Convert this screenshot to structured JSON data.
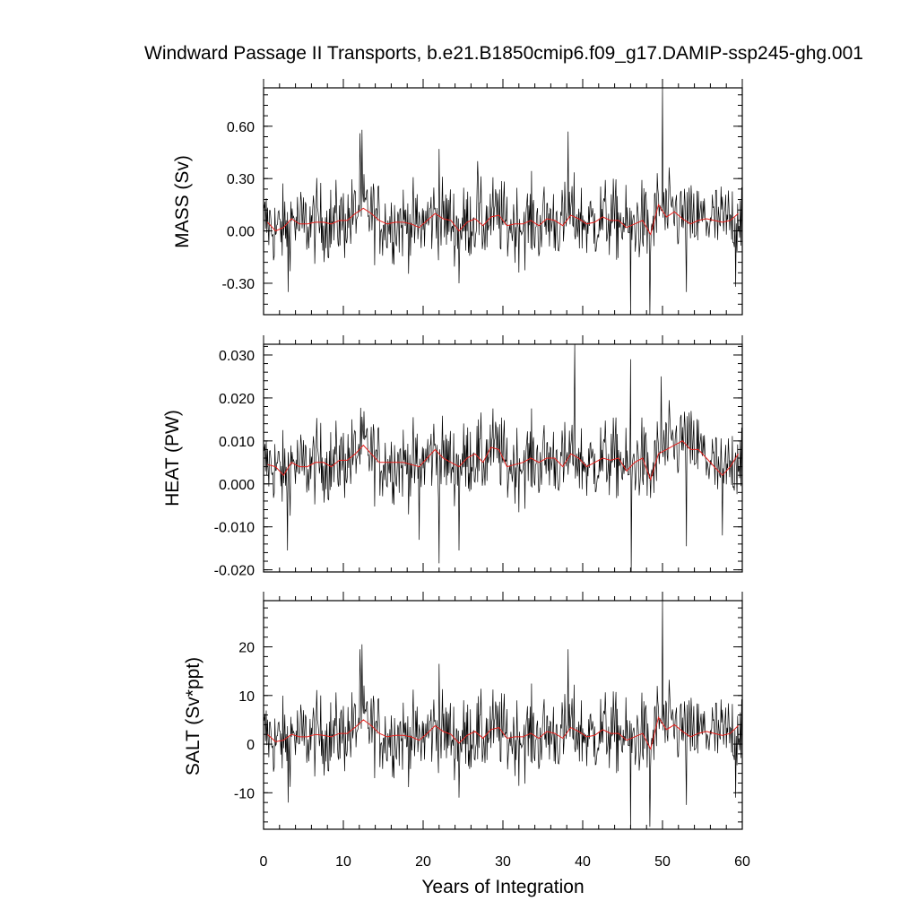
{
  "chart_data": {
    "title": "Windward Passage II Transports, b.e21.B1850cmip6.f09_g17.DAMIP-ssp245-ghg.001",
    "xlabel": "Years of Integration",
    "xlim": [
      0,
      60
    ],
    "xticks": [
      0,
      10,
      20,
      30,
      40,
      50,
      60
    ],
    "xtick_labels": [
      "0",
      "10",
      "20",
      "30",
      "40",
      "50",
      "60"
    ],
    "colors": {
      "raw": "#000000",
      "smooth": "#e8211d"
    },
    "panels": [
      {
        "type": "line",
        "name": "mass",
        "ylabel": "MASS (Sv)",
        "ylim": [
          -0.48,
          0.82
        ],
        "yticks": [
          -0.3,
          0.0,
          0.3,
          0.6
        ],
        "ytick_labels": [
          "-0.30",
          "0.00",
          "0.30",
          "0.60"
        ],
        "minor_step": 0.06,
        "spikes": [
          [
            12.1,
            0.56
          ],
          [
            12.3,
            0.58
          ],
          [
            22.0,
            0.47
          ],
          [
            26.8,
            0.4
          ],
          [
            38.2,
            0.57
          ],
          [
            50.0,
            0.82
          ],
          [
            24.5,
            -0.3
          ],
          [
            46.0,
            -0.48
          ],
          [
            48.4,
            -0.48
          ],
          [
            53.0,
            -0.35
          ],
          [
            3.1,
            -0.35
          ],
          [
            59.2,
            -0.32
          ]
        ],
        "smooth": [
          [
            0.5,
            0.05
          ],
          [
            1.5,
            0.0
          ],
          [
            2.5,
            0.02
          ],
          [
            3.5,
            0.07
          ],
          [
            4.5,
            0.04
          ],
          [
            5.5,
            0.04
          ],
          [
            6.5,
            0.05
          ],
          [
            7.5,
            0.05
          ],
          [
            8.5,
            0.04
          ],
          [
            9.5,
            0.06
          ],
          [
            10.5,
            0.06
          ],
          [
            11.5,
            0.1
          ],
          [
            12.5,
            0.13
          ],
          [
            13.5,
            0.1
          ],
          [
            14.5,
            0.06
          ],
          [
            15.5,
            0.04
          ],
          [
            16.5,
            0.05
          ],
          [
            17.5,
            0.05
          ],
          [
            18.5,
            0.04
          ],
          [
            19.5,
            0.02
          ],
          [
            20.5,
            0.06
          ],
          [
            21.5,
            0.1
          ],
          [
            22.5,
            0.07
          ],
          [
            23.5,
            0.06
          ],
          [
            24.5,
            0.0
          ],
          [
            25.5,
            0.05
          ],
          [
            26.5,
            0.07
          ],
          [
            27.5,
            0.03
          ],
          [
            28.5,
            0.08
          ],
          [
            29.5,
            0.09
          ],
          [
            30.5,
            0.03
          ],
          [
            31.5,
            0.04
          ],
          [
            32.5,
            0.04
          ],
          [
            33.5,
            0.06
          ],
          [
            34.5,
            0.03
          ],
          [
            35.5,
            0.07
          ],
          [
            36.5,
            0.06
          ],
          [
            37.5,
            0.03
          ],
          [
            38.5,
            0.09
          ],
          [
            39.5,
            0.07
          ],
          [
            40.5,
            0.04
          ],
          [
            41.5,
            0.05
          ],
          [
            42.5,
            0.08
          ],
          [
            43.5,
            0.06
          ],
          [
            44.5,
            0.06
          ],
          [
            45.5,
            0.02
          ],
          [
            46.5,
            0.04
          ],
          [
            47.5,
            0.06
          ],
          [
            48.5,
            -0.02
          ],
          [
            49.5,
            0.15
          ],
          [
            50.5,
            0.08
          ],
          [
            51.5,
            0.11
          ],
          [
            52.5,
            0.07
          ],
          [
            53.5,
            0.04
          ],
          [
            54.5,
            0.06
          ],
          [
            55.5,
            0.07
          ],
          [
            56.5,
            0.06
          ],
          [
            57.5,
            0.05
          ],
          [
            58.5,
            0.06
          ],
          [
            59.5,
            0.1
          ]
        ]
      },
      {
        "type": "line",
        "name": "heat",
        "ylabel": "HEAT (PW)",
        "ylim": [
          -0.0205,
          0.0325
        ],
        "yticks": [
          -0.02,
          -0.01,
          0.0,
          0.01,
          0.02,
          0.03
        ],
        "ytick_labels": [
          "-0.020",
          "-0.010",
          "0.000",
          "0.010",
          "0.020",
          "0.030"
        ],
        "minor_step": 0.002,
        "spikes": [
          [
            39.0,
            0.0325
          ],
          [
            46.0,
            0.029
          ],
          [
            49.8,
            0.025
          ],
          [
            3.0,
            -0.0155
          ],
          [
            22.0,
            -0.0185
          ],
          [
            24.5,
            -0.0155
          ],
          [
            46.1,
            -0.0205
          ],
          [
            53.0,
            -0.0145
          ],
          [
            19.5,
            -0.013
          ],
          [
            57.5,
            -0.012
          ]
        ],
        "smooth": [
          [
            0.5,
            0.0045
          ],
          [
            1.5,
            0.004
          ],
          [
            2.5,
            0.002
          ],
          [
            3.5,
            0.005
          ],
          [
            4.5,
            0.004
          ],
          [
            5.5,
            0.004
          ],
          [
            6.5,
            0.005
          ],
          [
            7.5,
            0.005
          ],
          [
            8.5,
            0.004
          ],
          [
            9.5,
            0.0055
          ],
          [
            10.5,
            0.0055
          ],
          [
            11.5,
            0.007
          ],
          [
            12.5,
            0.009
          ],
          [
            13.5,
            0.007
          ],
          [
            14.5,
            0.005
          ],
          [
            15.5,
            0.005
          ],
          [
            16.5,
            0.005
          ],
          [
            17.5,
            0.005
          ],
          [
            18.5,
            0.0045
          ],
          [
            19.5,
            0.004
          ],
          [
            20.5,
            0.006
          ],
          [
            21.5,
            0.008
          ],
          [
            22.5,
            0.006
          ],
          [
            23.5,
            0.005
          ],
          [
            24.5,
            0.004
          ],
          [
            25.5,
            0.006
          ],
          [
            26.5,
            0.007
          ],
          [
            27.5,
            0.005
          ],
          [
            28.5,
            0.0085
          ],
          [
            29.5,
            0.008
          ],
          [
            30.5,
            0.004
          ],
          [
            31.5,
            0.0045
          ],
          [
            32.5,
            0.005
          ],
          [
            33.5,
            0.006
          ],
          [
            34.5,
            0.005
          ],
          [
            35.5,
            0.006
          ],
          [
            36.5,
            0.006
          ],
          [
            37.5,
            0.004
          ],
          [
            38.5,
            0.007
          ],
          [
            39.5,
            0.006
          ],
          [
            40.5,
            0.004
          ],
          [
            41.5,
            0.005
          ],
          [
            42.5,
            0.006
          ],
          [
            43.5,
            0.0055
          ],
          [
            44.5,
            0.006
          ],
          [
            45.5,
            0.003
          ],
          [
            46.5,
            0.005
          ],
          [
            47.5,
            0.006
          ],
          [
            48.5,
            0.001
          ],
          [
            49.5,
            0.007
          ],
          [
            50.5,
            0.008
          ],
          [
            51.5,
            0.009
          ],
          [
            52.5,
            0.01
          ],
          [
            53.5,
            0.008
          ],
          [
            54.5,
            0.008
          ],
          [
            55.5,
            0.006
          ],
          [
            56.5,
            0.004
          ],
          [
            57.5,
            0.002
          ],
          [
            58.5,
            0.004
          ],
          [
            59.5,
            0.007
          ]
        ]
      },
      {
        "type": "line",
        "name": "salt",
        "ylabel": "SALT (Sv*ppt)",
        "ylim": [
          -17.5,
          29.5
        ],
        "yticks": [
          -10,
          0,
          10,
          20
        ],
        "ytick_labels": [
          "-10",
          "0",
          "10",
          "20"
        ],
        "minor_step": 2,
        "spikes": [
          [
            12.1,
            19.5
          ],
          [
            12.3,
            20.5
          ],
          [
            22.0,
            16.5
          ],
          [
            38.2,
            19.5
          ],
          [
            50.0,
            29.5
          ],
          [
            3.1,
            -12.0
          ],
          [
            24.5,
            -11.0
          ],
          [
            46.0,
            -17.5
          ],
          [
            48.4,
            -17.0
          ],
          [
            53.0,
            -12.5
          ],
          [
            59.2,
            -11.0
          ]
        ],
        "smooth": [
          [
            0.5,
            2.0
          ],
          [
            1.5,
            0.5
          ],
          [
            2.5,
            0.8
          ],
          [
            3.5,
            2.0
          ],
          [
            4.5,
            1.5
          ],
          [
            5.5,
            1.5
          ],
          [
            6.5,
            2.0
          ],
          [
            7.5,
            1.8
          ],
          [
            8.5,
            1.5
          ],
          [
            9.5,
            2.2
          ],
          [
            10.5,
            2.2
          ],
          [
            11.5,
            3.5
          ],
          [
            12.5,
            5.0
          ],
          [
            13.5,
            3.8
          ],
          [
            14.5,
            2.2
          ],
          [
            15.5,
            1.5
          ],
          [
            16.5,
            1.8
          ],
          [
            17.5,
            1.8
          ],
          [
            18.5,
            1.5
          ],
          [
            19.5,
            0.8
          ],
          [
            20.5,
            2.2
          ],
          [
            21.5,
            3.8
          ],
          [
            22.5,
            2.6
          ],
          [
            23.5,
            2.0
          ],
          [
            24.5,
            0.2
          ],
          [
            25.5,
            1.8
          ],
          [
            26.5,
            2.6
          ],
          [
            27.5,
            1.2
          ],
          [
            28.5,
            3.0
          ],
          [
            29.5,
            3.4
          ],
          [
            30.5,
            1.2
          ],
          [
            31.5,
            1.5
          ],
          [
            32.5,
            1.5
          ],
          [
            33.5,
            2.2
          ],
          [
            34.5,
            1.2
          ],
          [
            35.5,
            2.6
          ],
          [
            36.5,
            2.2
          ],
          [
            37.5,
            1.2
          ],
          [
            38.5,
            3.4
          ],
          [
            39.5,
            2.6
          ],
          [
            40.5,
            1.5
          ],
          [
            41.5,
            1.8
          ],
          [
            42.5,
            3.0
          ],
          [
            43.5,
            2.2
          ],
          [
            44.5,
            2.2
          ],
          [
            45.5,
            0.8
          ],
          [
            46.5,
            1.5
          ],
          [
            47.5,
            2.2
          ],
          [
            48.5,
            -1.0
          ],
          [
            49.5,
            5.5
          ],
          [
            50.5,
            3.0
          ],
          [
            51.5,
            4.0
          ],
          [
            52.5,
            2.6
          ],
          [
            53.5,
            1.5
          ],
          [
            54.5,
            2.2
          ],
          [
            55.5,
            2.6
          ],
          [
            56.5,
            2.2
          ],
          [
            57.5,
            1.8
          ],
          [
            58.5,
            2.2
          ],
          [
            59.5,
            3.8
          ]
        ]
      }
    ]
  }
}
